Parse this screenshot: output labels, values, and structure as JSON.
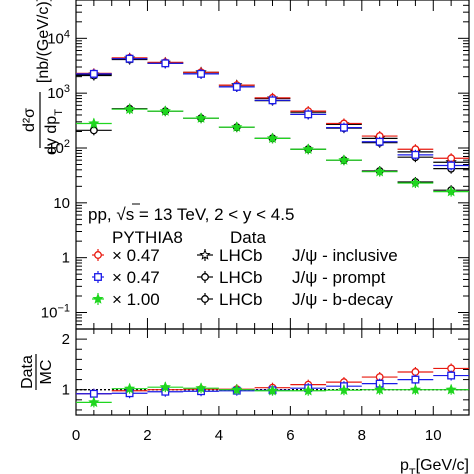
{
  "chart_data": [
    {
      "panel": "main",
      "type": "scatter",
      "x_bin_width": 1,
      "xlim": [
        0,
        11
      ],
      "ylim": [
        0.05,
        50000
      ],
      "y_scale": "log",
      "ylabel_num": "d²σ",
      "ylabel_den": "dy dp",
      "ylabel_den_sub": "T",
      "ylabel_unit": "[nb/(GeV/c)]",
      "y_ticks": [
        {
          "value": 10,
          "label": "10"
        },
        {
          "value": 100,
          "label": "10",
          "exp": "2"
        },
        {
          "value": 1000,
          "label": "10",
          "exp": "3"
        },
        {
          "value": 10000,
          "label": "10",
          "exp": "4"
        },
        {
          "value": 0.1,
          "label": "10",
          "exp": "−1"
        },
        {
          "value": 1,
          "label": "1"
        }
      ],
      "series": [
        {
          "name": "LHCb J/ψ - inclusive",
          "group": "data",
          "marker": "star",
          "color": "#000000",
          "x": [
            0.5,
            1.5,
            2.5,
            3.5,
            4.5,
            5.5,
            6.5,
            7.5,
            8.5,
            9.5,
            10.5
          ],
          "y": [
            2200,
            4300,
            3600,
            2400,
            1400,
            800,
            450,
            270,
            150,
            85,
            55
          ]
        },
        {
          "name": "LHCb J/ψ - prompt",
          "group": "data",
          "marker": "circle",
          "color": "#000000",
          "x": [
            0.5,
            1.5,
            2.5,
            3.5,
            4.5,
            5.5,
            6.5,
            7.5,
            8.5,
            9.5,
            10.5
          ],
          "y": [
            2100,
            4100,
            3500,
            2250,
            1300,
            730,
            410,
            230,
            125,
            68,
            42
          ]
        },
        {
          "name": "LHCb J/ψ - b-decay",
          "group": "data",
          "marker": "circle",
          "color": "#000000",
          "x": [
            0.5,
            1.5,
            2.5,
            3.5,
            4.5,
            5.5,
            6.5,
            7.5,
            8.5,
            9.5,
            10.5
          ],
          "y": [
            210,
            520,
            470,
            350,
            240,
            150,
            95,
            60,
            38,
            24,
            17
          ]
        },
        {
          "name": "PYTHIA8 × 0.47 (inclusive)",
          "group": "pythia",
          "marker": "open-circle",
          "color": "#e8190f",
          "x": [
            0.5,
            1.5,
            2.5,
            3.5,
            4.5,
            5.5,
            6.5,
            7.5,
            8.5,
            9.5,
            10.5
          ],
          "y": [
            2300,
            4400,
            3650,
            2400,
            1400,
            820,
            470,
            280,
            165,
            95,
            65
          ]
        },
        {
          "name": "PYTHIA8 × 0.47 (prompt)",
          "group": "pythia",
          "marker": "open-square",
          "color": "#1a1ae8",
          "x": [
            0.5,
            1.5,
            2.5,
            3.5,
            4.5,
            5.5,
            6.5,
            7.5,
            8.5,
            9.5,
            10.5
          ],
          "y": [
            2250,
            4250,
            3500,
            2250,
            1300,
            740,
            410,
            235,
            130,
            75,
            48
          ]
        },
        {
          "name": "PYTHIA8 × 1.00 (b-decay)",
          "group": "pythia",
          "marker": "star",
          "color": "#1fd61f",
          "x": [
            0.5,
            1.5,
            2.5,
            3.5,
            4.5,
            5.5,
            6.5,
            7.5,
            8.5,
            9.5,
            10.5
          ],
          "y": [
            280,
            510,
            470,
            350,
            240,
            150,
            95,
            60,
            37,
            23,
            16
          ]
        }
      ]
    },
    {
      "panel": "ratio",
      "type": "scatter",
      "ylabel_num": "Data",
      "ylabel_den": "MC",
      "xlim": [
        0,
        11
      ],
      "ylim": [
        0.5,
        2.2
      ],
      "y_ticks": [
        {
          "value": 1,
          "label": "1"
        },
        {
          "value": 2,
          "label": "2"
        }
      ],
      "reference_line": 1,
      "series": [
        {
          "name": "inclusive / PYTHIA8",
          "marker": "open-circle",
          "color": "#e8190f",
          "x": [
            0.5,
            1.5,
            2.5,
            3.5,
            4.5,
            5.5,
            6.5,
            7.5,
            8.5,
            9.5,
            10.5
          ],
          "y": [
            0.92,
            0.98,
            1.0,
            1.01,
            1.01,
            1.04,
            1.1,
            1.15,
            1.25,
            1.35,
            1.42
          ]
        },
        {
          "name": "prompt / PYTHIA8",
          "marker": "open-square",
          "color": "#1a1ae8",
          "x": [
            0.5,
            1.5,
            2.5,
            3.5,
            4.5,
            5.5,
            6.5,
            7.5,
            8.5,
            9.5,
            10.5
          ],
          "y": [
            0.92,
            0.93,
            0.96,
            0.97,
            0.98,
            0.99,
            1.03,
            1.07,
            1.12,
            1.2,
            1.28
          ]
        },
        {
          "name": "b-decay / PYTHIA8",
          "marker": "star",
          "color": "#1fd61f",
          "x": [
            0.5,
            1.5,
            2.5,
            3.5,
            4.5,
            5.5,
            6.5,
            7.5,
            8.5,
            9.5,
            10.5
          ],
          "y": [
            0.75,
            1.02,
            1.05,
            1.03,
            1.0,
            0.98,
            0.98,
            0.99,
            1.0,
            1.0,
            1.0
          ]
        }
      ]
    }
  ],
  "x_axis": {
    "ticks": [
      0,
      2,
      4,
      6,
      8,
      10
    ],
    "label": "p",
    "label_sub": "T",
    "label_unit": "[GeV/c]"
  },
  "annotation": {
    "system_prefix": "pp, ",
    "sqrt": "√",
    "s_value": "s = 13 TeV, 2 < y < 4.5"
  },
  "legend": {
    "pythia_header": "PYTHIA8",
    "data_header": "Data",
    "rows": [
      {
        "factor": "× 0.47",
        "pythia_color": "#e8190f",
        "pythia_marker": "open-circle",
        "exp": "LHCb",
        "label": "J/ψ - inclusive",
        "data_marker": "star"
      },
      {
        "factor": "× 0.47",
        "pythia_color": "#1a1ae8",
        "pythia_marker": "open-square",
        "exp": "LHCb",
        "label": "J/ψ - prompt",
        "data_marker": "circle"
      },
      {
        "factor": "× 1.00",
        "pythia_color": "#1fd61f",
        "pythia_marker": "star",
        "exp": "LHCb",
        "label": "J/ψ - b-decay",
        "data_marker": "circle"
      }
    ]
  }
}
